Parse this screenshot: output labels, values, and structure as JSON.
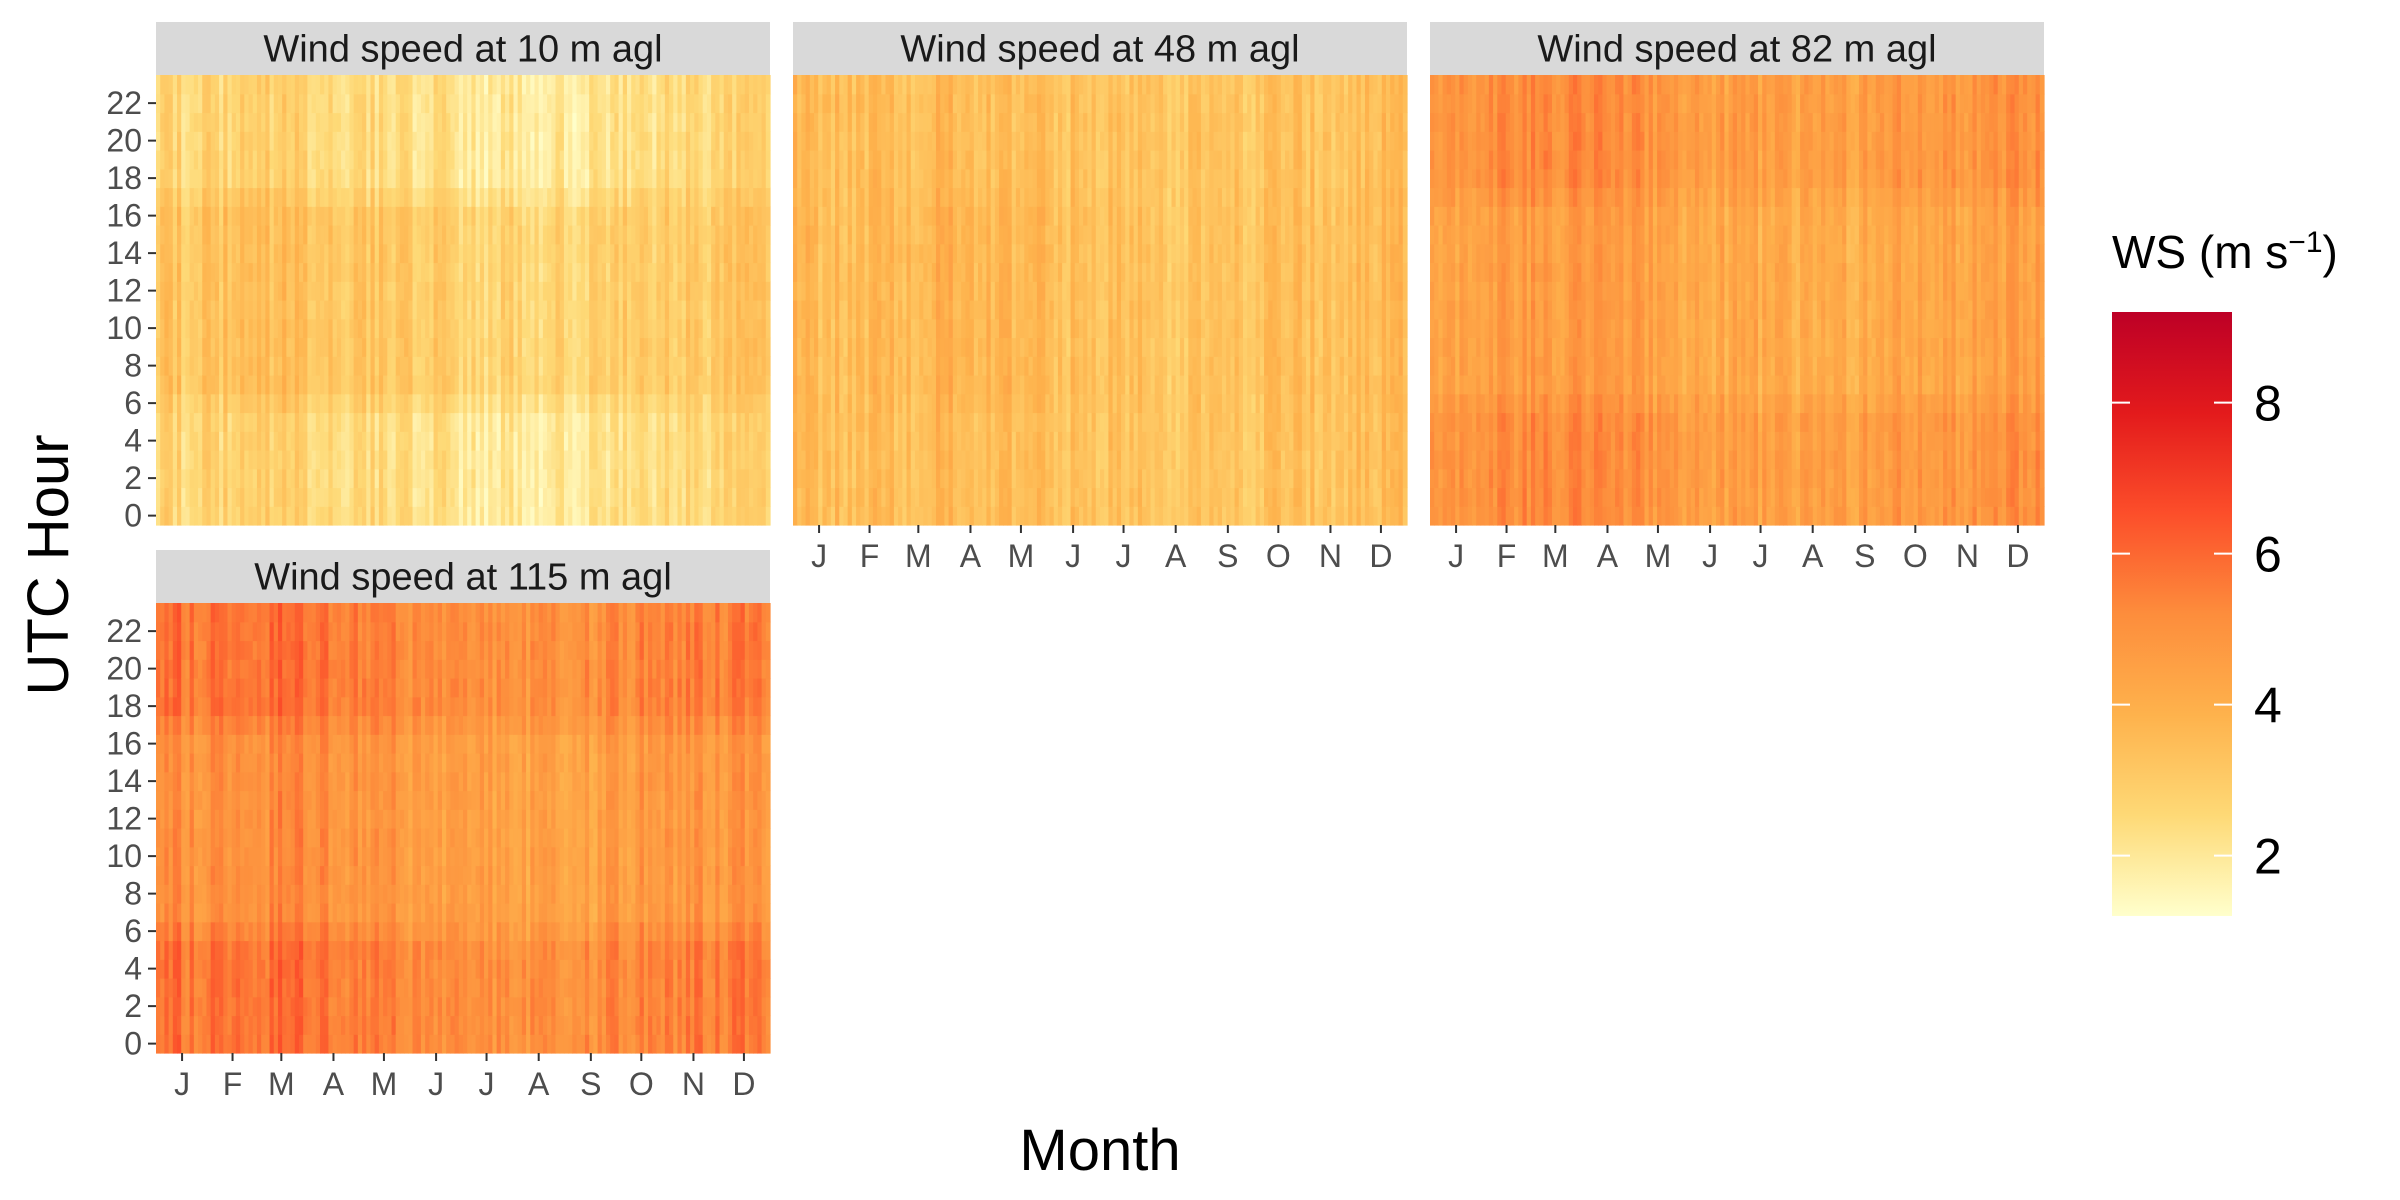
{
  "chart_data": {
    "type": "heatmap",
    "xlabel": "Month",
    "ylabel": "UTC Hour",
    "x_ticks": [
      "J",
      "F",
      "M",
      "A",
      "M",
      "J",
      "J",
      "A",
      "S",
      "O",
      "N",
      "D"
    ],
    "y_ticks": [
      0,
      2,
      4,
      6,
      8,
      10,
      12,
      14,
      16,
      18,
      20,
      22
    ],
    "x_range_days": [
      1,
      365
    ],
    "y_range_hours": [
      0,
      23
    ],
    "panels": [
      {
        "title": "Wind speed at 10 m agl",
        "monthly_day_mean_ws": [
          3.1,
          3.3,
          3.4,
          3.3,
          3.1,
          2.9,
          2.7,
          2.6,
          2.7,
          2.9,
          3.0,
          3.1
        ],
        "monthly_night_mean_ws": [
          2.6,
          2.7,
          2.8,
          2.6,
          2.4,
          2.2,
          2.0,
          1.9,
          2.0,
          2.3,
          2.5,
          2.6
        ]
      },
      {
        "title": "Wind speed at 48 m agl",
        "monthly_day_mean_ws": [
          3.4,
          3.6,
          3.8,
          3.8,
          3.6,
          3.4,
          3.3,
          3.2,
          3.3,
          3.4,
          3.4,
          3.5
        ],
        "monthly_night_mean_ws": [
          3.4,
          3.5,
          3.6,
          3.5,
          3.4,
          3.3,
          3.2,
          3.2,
          3.2,
          3.3,
          3.3,
          3.4
        ]
      },
      {
        "title": "Wind speed at 82 m agl",
        "monthly_day_mean_ws": [
          4.5,
          4.7,
          4.7,
          4.6,
          4.4,
          4.2,
          4.1,
          4.0,
          4.1,
          4.3,
          4.4,
          4.5
        ],
        "monthly_night_mean_ws": [
          5.0,
          5.2,
          5.3,
          5.1,
          4.9,
          4.6,
          4.5,
          4.5,
          4.6,
          4.8,
          4.9,
          5.0
        ]
      },
      {
        "title": "Wind speed at 115 m agl",
        "monthly_day_mean_ws": [
          4.9,
          5.1,
          5.2,
          5.1,
          4.8,
          4.6,
          4.5,
          4.4,
          4.5,
          4.7,
          4.8,
          4.9
        ],
        "monthly_night_mean_ws": [
          5.6,
          5.8,
          5.9,
          5.7,
          5.4,
          5.2,
          5.0,
          5.0,
          5.1,
          5.3,
          5.5,
          5.6
        ]
      }
    ],
    "legend": {
      "title_main": "WS (m s",
      "title_sup": "−1",
      "title_close": ")",
      "ticks": [
        2,
        4,
        6,
        8
      ],
      "range": [
        1.2,
        9.2
      ],
      "colors": [
        "#ffffcc",
        "#fed976",
        "#feb24c",
        "#fd8d3c",
        "#fc4e2a",
        "#e31a1c",
        "#bd0026"
      ],
      "placement": "right"
    },
    "grid": false
  }
}
